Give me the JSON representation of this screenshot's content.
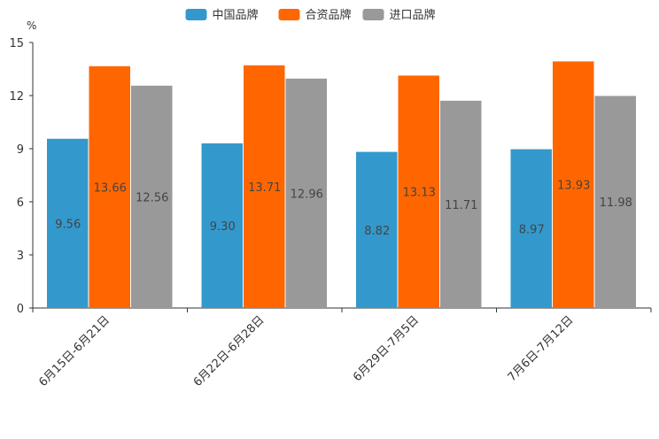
{
  "chart_data": {
    "type": "bar",
    "y_unit": "%",
    "categories": [
      "6月15日-6月21日",
      "6月22日-6月28日",
      "6月29日-7月5日",
      "7月6日-7月12日"
    ],
    "series": [
      {
        "name": "中国品牌",
        "color": "#3399cc",
        "values": [
          9.56,
          9.3,
          8.82,
          8.97
        ]
      },
      {
        "name": "合资品牌",
        "color": "#ff6600",
        "values": [
          13.66,
          13.71,
          13.13,
          13.93
        ]
      },
      {
        "name": "进口品牌",
        "color": "#999999",
        "values": [
          12.56,
          12.96,
          11.71,
          11.98
        ]
      }
    ],
    "value_labels": [
      [
        "9.56",
        "9.30",
        "8.82",
        "8.97"
      ],
      [
        "13.66",
        "13.71",
        "13.13",
        "13.93"
      ],
      [
        "12.56",
        "12.96",
        "11.71",
        "11.98"
      ]
    ],
    "ylim": [
      0,
      15
    ],
    "yticks": [
      0,
      3,
      6,
      9,
      12,
      15
    ],
    "ytick_labels": [
      "0",
      "3",
      "6",
      "9",
      "12",
      "15"
    ],
    "legend_position": "top-center",
    "grid": false
  }
}
